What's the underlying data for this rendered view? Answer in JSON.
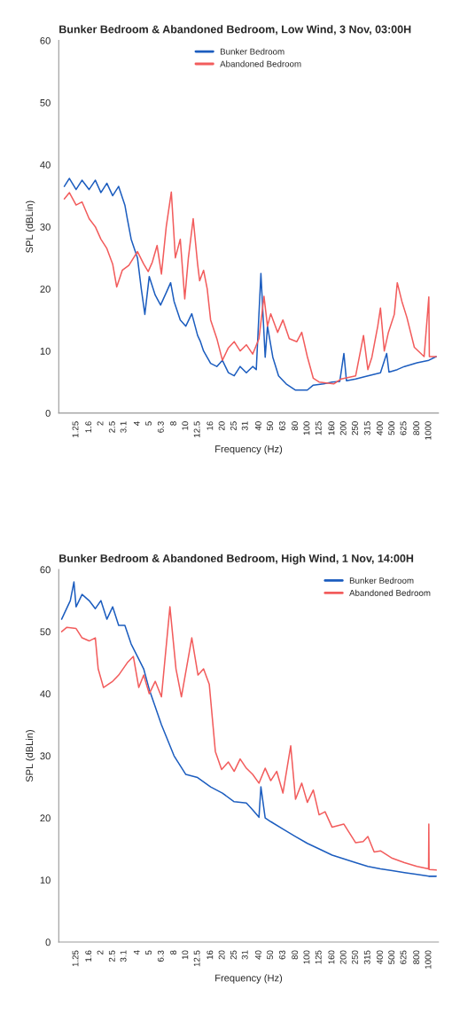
{
  "chart_data": [
    {
      "type": "line",
      "title": "Bunker Bedroom & Abandoned Bedroom, Low Wind, 3 Nov, 03:00H",
      "xlabel": "Frequency (Hz)",
      "ylabel": "SPL (dBLin)",
      "log": "x",
      "xlim": [
        0.9,
        1200
      ],
      "xticks": [
        1.25,
        1.6,
        2,
        2.5,
        3.1,
        4,
        5,
        6.3,
        8,
        10,
        12.5,
        16,
        20,
        25,
        31,
        40,
        50,
        63,
        80,
        100,
        125,
        160,
        200,
        250,
        315,
        400,
        500,
        625,
        800,
        1000
      ],
      "ylim": [
        0,
        60
      ],
      "yticks": [
        0,
        10,
        20,
        30,
        40,
        50,
        60
      ],
      "grid": false,
      "legend": "top",
      "marker": "none",
      "line_style": "solid",
      "series": [
        {
          "name": "Bunker Bedroom",
          "color": "#1c5dbf",
          "x": [
            1.0,
            1.1,
            1.25,
            1.4,
            1.6,
            1.8,
            2,
            2.24,
            2.5,
            2.8,
            3.15,
            3.3,
            3.55,
            4,
            4.3,
            4.6,
            5,
            5.6,
            6.2,
            6.9,
            7.5,
            8,
            9,
            10,
            11.2,
            12.5,
            13.2,
            14,
            16,
            18,
            20,
            22.4,
            25,
            28,
            31.5,
            35.5,
            38,
            41.5,
            45,
            47,
            52,
            58,
            67,
            80,
            100,
            112,
            136,
            160,
            185,
            200,
            210,
            250,
            315,
            400,
            450,
            470,
            550,
            630,
            800,
            1000,
            1150
          ],
          "values": [
            36.5,
            37.8,
            36,
            37.5,
            36,
            37.5,
            35.5,
            37,
            35,
            36.5,
            33.5,
            31.3,
            28,
            25,
            20,
            15.9,
            22,
            19,
            17.4,
            19.4,
            21,
            18,
            15,
            14,
            16,
            12.5,
            11.5,
            10,
            8,
            7.5,
            8.5,
            6.5,
            6,
            7.5,
            6.5,
            7.5,
            7,
            22.5,
            9,
            14,
            9,
            6,
            4.7,
            3.7,
            3.7,
            4.5,
            4.7,
            5,
            5.1,
            9.6,
            5.2,
            5.5,
            6,
            6.5,
            9.6,
            6.6,
            7,
            7.5,
            8.1,
            8.5,
            9.1
          ]
        },
        {
          "name": "Abandoned Bedroom",
          "color": "#f25c5c",
          "x": [
            1.0,
            1.1,
            1.25,
            1.4,
            1.6,
            1.8,
            2,
            2.24,
            2.5,
            2.7,
            3,
            3.4,
            4,
            4.5,
            4.9,
            5.3,
            5.8,
            6.3,
            6.9,
            7.6,
            8.2,
            9,
            9.8,
            10.5,
            11.5,
            12.5,
            13,
            14,
            15,
            16,
            18,
            20,
            22.4,
            25,
            28,
            31.5,
            35.5,
            40,
            44,
            47,
            50,
            57,
            63,
            71,
            82,
            90,
            100,
            112,
            125,
            165,
            190,
            250,
            290,
            315,
            340,
            380,
            400,
            430,
            465,
            520,
            550,
            600,
            660,
            760,
            915,
            1000,
            1010,
            1150
          ],
          "values": [
            34.5,
            35.5,
            33.5,
            34,
            31.3,
            30,
            28,
            26.5,
            24,
            20.3,
            23,
            23.8,
            26,
            24,
            22.8,
            24.3,
            27,
            22.4,
            30,
            35.6,
            25,
            28,
            18.4,
            25,
            31.3,
            24,
            21.3,
            23,
            20,
            15,
            12,
            8.5,
            10.5,
            11.5,
            10,
            11,
            9.5,
            12,
            18.8,
            14,
            16,
            13,
            15,
            12,
            11.5,
            13,
            9.1,
            5.6,
            5,
            4.7,
            5.5,
            6,
            12.5,
            7,
            9,
            14,
            16.9,
            10,
            13,
            15.9,
            21,
            18,
            15.4,
            10.6,
            9.1,
            18.7,
            9.1,
            9.1
          ]
        }
      ]
    },
    {
      "type": "line",
      "title": "Bunker Bedroom & Abandoned Bedroom, High Wind, 1 Nov, 14:00H",
      "xlabel": "Frequency (Hz)",
      "ylabel": "SPL (dBLin)",
      "log": "x",
      "xlim": [
        0.9,
        1200
      ],
      "xticks": [
        1.25,
        1.6,
        2,
        2.5,
        3.1,
        4,
        5,
        6.3,
        8,
        10,
        12.5,
        16,
        20,
        25,
        31,
        40,
        50,
        63,
        80,
        100,
        125,
        160,
        200,
        250,
        315,
        400,
        500,
        625,
        800,
        1000
      ],
      "ylim": [
        0,
        60
      ],
      "yticks": [
        0,
        10,
        20,
        30,
        40,
        50,
        60
      ],
      "grid": false,
      "legend": "top right",
      "marker": "none",
      "line_style": "solid",
      "series": [
        {
          "name": "Bunker Bedroom",
          "color": "#1c5dbf",
          "x": [
            0.95,
            1.12,
            1.2,
            1.25,
            1.4,
            1.6,
            1.8,
            2,
            2.24,
            2.5,
            2.8,
            3.15,
            3.55,
            4,
            4.5,
            5,
            6.3,
            8,
            10,
            12.5,
            16,
            20,
            25,
            31.5,
            35.5,
            40,
            41.5,
            45,
            50,
            63,
            80,
            100,
            125,
            160,
            200,
            250,
            315,
            400,
            500,
            630,
            800,
            1000,
            1150
          ],
          "values": [
            52,
            55,
            58,
            54,
            56,
            55,
            53.7,
            55,
            52,
            54,
            51,
            51,
            48,
            46,
            44,
            40.7,
            35,
            30,
            27,
            26.5,
            25,
            24,
            22.6,
            22.4,
            21.3,
            20.1,
            25,
            20,
            19.4,
            18.2,
            17,
            15.9,
            15,
            14,
            13.4,
            12.8,
            12.2,
            11.8,
            11.5,
            11.2,
            10.9,
            10.6,
            10.6
          ]
        },
        {
          "name": "Abandoned Bedroom",
          "color": "#f25c5c",
          "x": [
            0.95,
            1.05,
            1.25,
            1.4,
            1.6,
            1.8,
            1.9,
            2.1,
            2.5,
            2.8,
            3.3,
            3.7,
            4.1,
            4.5,
            5,
            5.6,
            6.3,
            7.4,
            8.3,
            9.2,
            11.2,
            12.6,
            14,
            15.6,
            17.5,
            19.7,
            22.4,
            25,
            28,
            31.5,
            35.5,
            40,
            45,
            50,
            56,
            63,
            73,
            80,
            90,
            100,
            112,
            125,
            140,
            160,
            200,
            250,
            288,
            315,
            355,
            400,
            500,
            630,
            800,
            995,
            1000,
            1005,
            1150
          ],
          "values": [
            50,
            50.7,
            50.5,
            49,
            48.5,
            49,
            44,
            41,
            42,
            43,
            45,
            46,
            41,
            43,
            40,
            42,
            39.5,
            54,
            44,
            39.5,
            49,
            43,
            44,
            41.5,
            30.7,
            27.8,
            29,
            27.5,
            29.5,
            28,
            27,
            25.6,
            28,
            26,
            27.5,
            24,
            31.6,
            23,
            25.6,
            22.5,
            24.5,
            20.5,
            21,
            18.5,
            19,
            16,
            16.2,
            17,
            14.5,
            14.7,
            13.5,
            12.8,
            12.2,
            11.8,
            19,
            11.7,
            11.6
          ]
        }
      ]
    }
  ]
}
